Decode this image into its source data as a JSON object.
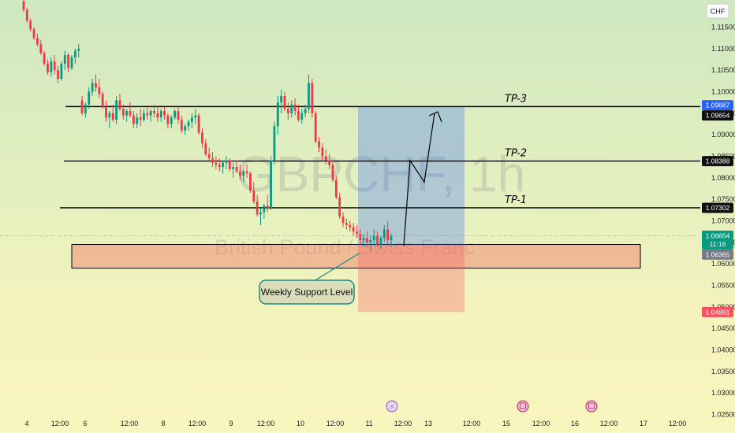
{
  "chart_data": {
    "type": "candlestick",
    "symbol": "GBPCHF, 1h",
    "subtitle": "British Pound / Swiss Franc",
    "currency": "CHF",
    "ylim": [
      1.0207,
      1.1213
    ],
    "y_ticks": [
      1.115,
      1.11,
      1.105,
      1.1,
      1.095,
      1.09,
      1.085,
      1.08,
      1.075,
      1.07,
      1.065,
      1.06,
      1.055,
      1.05,
      1.045,
      1.04,
      1.035,
      1.03,
      1.025
    ],
    "y_tick_labels": [
      "1.11500",
      "1.11000",
      "1.10500",
      "1.10000",
      "1.09500",
      "1.09000",
      "1.08500",
      "1.08000",
      "1.07500",
      "1.07000",
      "1.06500",
      "1.06000",
      "1.05500",
      "1.05000",
      "1.04500",
      "1.04000",
      "1.03500",
      "1.03000",
      "1.02500"
    ],
    "x_ticks": [
      {
        "label": "4",
        "px": 34
      },
      {
        "label": "12:00",
        "px": 76
      },
      {
        "label": "6",
        "px": 108
      },
      {
        "label": "12:00",
        "px": 164
      },
      {
        "label": "8",
        "px": 207
      },
      {
        "label": "12:00",
        "px": 250
      },
      {
        "label": "9",
        "px": 293
      },
      {
        "label": "12:00",
        "px": 337
      },
      {
        "label": "10",
        "px": 381
      },
      {
        "label": "12:00",
        "px": 425
      },
      {
        "label": "11",
        "px": 468
      },
      {
        "label": "12:00",
        "px": 511
      },
      {
        "label": "13",
        "px": 543
      },
      {
        "label": "12:00",
        "px": 598
      },
      {
        "label": "15",
        "px": 642
      },
      {
        "label": "12:00",
        "px": 686
      },
      {
        "label": "16",
        "px": 729
      },
      {
        "label": "12:00",
        "px": 772
      },
      {
        "label": "17",
        "px": 816
      },
      {
        "label": "12:00",
        "px": 859
      }
    ],
    "price_tags": [
      {
        "label": "1.09687",
        "value": 1.09687,
        "bg": "#2962ff",
        "color": "#ffffff"
      },
      {
        "label": "1.09654",
        "value": 1.09654,
        "bg": "#111111",
        "color": "#ffffff"
      },
      {
        "label": "1.08388",
        "value": 1.08388,
        "bg": "#111111",
        "color": "#ffffff"
      },
      {
        "label": "1.07302",
        "value": 1.07302,
        "bg": "#111111",
        "color": "#ffffff"
      },
      {
        "label": "1.06654",
        "value": 1.06654,
        "bg": "#089981",
        "color": "#ffffff",
        "sub": "11:16"
      },
      {
        "label": "1.06365",
        "value": 1.06365,
        "bg": "#787b86",
        "color": "#ffffff"
      },
      {
        "label": "1.04881",
        "value": 1.04881,
        "bg": "#f7525f",
        "color": "#ffffff"
      }
    ],
    "levels": [
      {
        "name": "TP-3",
        "value": 1.09654
      },
      {
        "name": "TP-2",
        "value": 1.08388
      },
      {
        "name": "TP-1",
        "value": 1.07302
      }
    ],
    "support_zone": {
      "label": "Weekly Support Level",
      "top": 1.0645,
      "bottom": 1.059
    },
    "position": {
      "entry": 1.0642,
      "target": 1.09654,
      "stop": 1.04881
    },
    "current_price": 1.06654,
    "candles_ohlc_values": [
      [
        1.121,
        1.1215,
        1.1185,
        1.119
      ],
      [
        1.119,
        1.1195,
        1.116,
        1.1165
      ],
      [
        1.1165,
        1.117,
        1.114,
        1.1145
      ],
      [
        1.1145,
        1.115,
        1.112,
        1.1125
      ],
      [
        1.1125,
        1.1135,
        1.1105,
        1.111
      ],
      [
        1.111,
        1.112,
        1.1085,
        1.109
      ],
      [
        1.109,
        1.1095,
        1.106,
        1.1065
      ],
      [
        1.1065,
        1.1075,
        1.104,
        1.1045
      ],
      [
        1.1045,
        1.108,
        1.1035,
        1.107
      ],
      [
        1.107,
        1.1085,
        1.104,
        1.105
      ],
      [
        1.105,
        1.106,
        1.102,
        1.103
      ],
      [
        1.103,
        1.107,
        1.1025,
        1.1065
      ],
      [
        1.1065,
        1.1095,
        1.105,
        1.1085
      ],
      [
        1.1085,
        1.109,
        1.1045,
        1.1055
      ],
      [
        1.1055,
        1.1085,
        1.105,
        1.108
      ],
      [
        1.108,
        1.11,
        1.1065,
        1.1095
      ],
      [
        1.1095,
        1.111,
        1.108,
        1.11
      ],
      [
        1.098,
        1.099,
        1.0945,
        1.095
      ],
      [
        1.095,
        1.0975,
        1.094,
        1.097
      ],
      [
        1.097,
        1.101,
        1.096,
        1.1
      ],
      [
        1.1,
        1.103,
        1.099,
        1.102
      ],
      [
        1.102,
        1.104,
        1.1,
        1.101
      ],
      [
        1.101,
        1.103,
        1.0985,
        1.0995
      ],
      [
        1.0995,
        1.1,
        1.096,
        1.0965
      ],
      [
        1.0965,
        1.098,
        1.093,
        1.094
      ],
      [
        1.094,
        1.0955,
        1.0915,
        1.095
      ],
      [
        1.095,
        1.097,
        1.093,
        1.0935
      ],
      [
        1.0935,
        1.099,
        1.0925,
        1.098
      ],
      [
        1.098,
        1.0995,
        1.0955,
        1.096
      ],
      [
        1.096,
        1.097,
        1.0935,
        1.0945
      ],
      [
        1.0945,
        1.096,
        1.093,
        1.0955
      ],
      [
        1.0955,
        1.0975,
        1.094,
        1.0945
      ],
      [
        1.0945,
        1.0955,
        1.0915,
        1.0925
      ],
      [
        1.0925,
        1.095,
        1.0915,
        1.094
      ],
      [
        1.094,
        1.096,
        1.092,
        1.0935
      ],
      [
        1.0935,
        1.096,
        1.093,
        1.095
      ],
      [
        1.095,
        1.0965,
        1.0935,
        1.0945
      ],
      [
        1.0945,
        1.096,
        1.093,
        1.0955
      ],
      [
        1.0955,
        1.097,
        1.094,
        1.095
      ],
      [
        1.095,
        1.0965,
        1.093,
        1.094
      ],
      [
        1.094,
        1.096,
        1.093,
        1.0955
      ],
      [
        1.0955,
        1.0965,
        1.0935,
        1.0945
      ],
      [
        1.0945,
        1.095,
        1.0915,
        1.0925
      ],
      [
        1.0925,
        1.0945,
        1.0915,
        1.094
      ],
      [
        1.094,
        1.096,
        1.0935,
        1.0955
      ],
      [
        1.0955,
        1.0965,
        1.0925,
        1.0935
      ],
      [
        1.0935,
        1.0945,
        1.0905,
        1.091
      ],
      [
        1.091,
        1.0925,
        1.09,
        1.092
      ],
      [
        1.092,
        1.0935,
        1.091,
        1.093
      ],
      [
        1.093,
        1.095,
        1.0915,
        1.094
      ],
      [
        1.094,
        1.096,
        1.0925,
        1.0945
      ],
      [
        1.0945,
        1.095,
        1.09,
        1.0905
      ],
      [
        1.0905,
        1.0915,
        1.087,
        1.088
      ],
      [
        1.088,
        1.089,
        1.085,
        1.0855
      ],
      [
        1.0855,
        1.087,
        1.084,
        1.0845
      ],
      [
        1.0845,
        1.086,
        1.0825,
        1.0835
      ],
      [
        1.0835,
        1.085,
        1.082,
        1.083
      ],
      [
        1.083,
        1.0845,
        1.0815,
        1.0825
      ],
      [
        1.0825,
        1.084,
        1.081,
        1.0835
      ],
      [
        1.0835,
        1.085,
        1.082,
        1.084
      ],
      [
        1.084,
        1.0845,
        1.0815,
        1.082
      ],
      [
        1.082,
        1.0835,
        1.08,
        1.0825
      ],
      [
        1.0825,
        1.084,
        1.081,
        1.0815
      ],
      [
        1.0815,
        1.083,
        1.0795,
        1.0805
      ],
      [
        1.0805,
        1.082,
        1.079,
        1.0815
      ],
      [
        1.0815,
        1.083,
        1.08,
        1.081
      ],
      [
        1.081,
        1.0815,
        1.0765,
        1.077
      ],
      [
        1.077,
        1.079,
        1.074,
        1.0745
      ],
      [
        1.0745,
        1.076,
        1.071,
        1.0715
      ],
      [
        1.0715,
        1.073,
        1.069,
        1.072
      ],
      [
        1.072,
        1.074,
        1.0705,
        1.0735
      ],
      [
        1.0735,
        1.076,
        1.072,
        1.073
      ],
      [
        1.073,
        1.085,
        1.0725,
        1.084
      ],
      [
        1.084,
        1.093,
        1.083,
        1.092
      ],
      [
        1.092,
        1.099,
        1.09,
        1.0975
      ],
      [
        1.0975,
        1.1005,
        1.095,
        1.099
      ],
      [
        1.099,
        1.1,
        1.0955,
        1.096
      ],
      [
        1.096,
        1.0975,
        1.0935,
        1.095
      ],
      [
        1.095,
        1.098,
        1.094,
        1.097
      ],
      [
        1.097,
        1.0985,
        1.0945,
        1.0955
      ],
      [
        1.0955,
        1.097,
        1.093,
        1.0935
      ],
      [
        1.0935,
        1.096,
        1.0925,
        1.095
      ],
      [
        1.095,
        1.097,
        1.094,
        1.096
      ],
      [
        1.096,
        1.104,
        1.095,
        1.102
      ],
      [
        1.102,
        1.103,
        1.094,
        1.095
      ],
      [
        1.095,
        1.0955,
        1.088,
        1.0885
      ],
      [
        1.0885,
        1.0895,
        1.086,
        1.087
      ],
      [
        1.087,
        1.088,
        1.084,
        1.085
      ],
      [
        1.085,
        1.0865,
        1.083,
        1.084
      ],
      [
        1.084,
        1.0855,
        1.082,
        1.083
      ],
      [
        1.083,
        1.084,
        1.079,
        1.0795
      ],
      [
        1.0795,
        1.0805,
        1.075,
        1.0755
      ],
      [
        1.0755,
        1.0765,
        1.0705,
        1.071
      ],
      [
        1.071,
        1.072,
        1.0685,
        1.0695
      ],
      [
        1.0695,
        1.0705,
        1.068,
        1.069
      ],
      [
        1.069,
        1.07,
        1.0675,
        1.0685
      ],
      [
        1.0685,
        1.0695,
        1.0665,
        1.0675
      ],
      [
        1.0675,
        1.069,
        1.066,
        1.067
      ],
      [
        1.067,
        1.068,
        1.0645,
        1.0655
      ],
      [
        1.0655,
        1.067,
        1.064,
        1.066
      ],
      [
        1.066,
        1.0675,
        1.064,
        1.065
      ],
      [
        1.065,
        1.0665,
        1.063,
        1.0655
      ],
      [
        1.0655,
        1.068,
        1.0645,
        1.0665
      ],
      [
        1.0665,
        1.0675,
        1.064,
        1.0645
      ],
      [
        1.0645,
        1.0665,
        1.0635,
        1.066
      ],
      [
        1.066,
        1.069,
        1.065,
        1.068
      ],
      [
        1.068,
        1.07,
        1.0645,
        1.0655
      ],
      [
        1.0655,
        1.067,
        1.064,
        1.0665
      ]
    ]
  }
}
